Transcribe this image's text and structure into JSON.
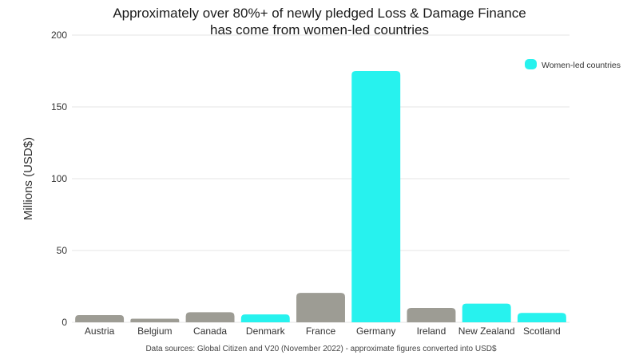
{
  "chart_data": {
    "type": "bar",
    "title_line1": "Approximately over 80%+ of newly pledged Loss & Damage Finance",
    "title_line2": "has come from women-led countries",
    "ylabel": "Millions (USD$)",
    "xlabel": "",
    "ylim": [
      0,
      200
    ],
    "yticks": [
      "0",
      "50",
      "100",
      "150",
      "200"
    ],
    "ytick_values": [
      0,
      50,
      100,
      150,
      200
    ],
    "grid": true,
    "legend_position": "top-right",
    "legend_label": "Women-led countries",
    "source": "Data sources: Global Citizen and V20 (November 2022) - approximate figures converted into USD$",
    "categories": [
      "Austria",
      "Belgium",
      "Canada",
      "Denmark",
      "France",
      "Germany",
      "Ireland",
      "New Zealand",
      "Scotland"
    ],
    "values": [
      5,
      2.5,
      7,
      5.5,
      20.5,
      175,
      10,
      13,
      6.5
    ],
    "women_led": [
      false,
      false,
      false,
      true,
      false,
      true,
      false,
      true,
      true
    ],
    "colors": {
      "women_led": "#27f2ee",
      "other": "#9d9c94",
      "grid": "#e5e5e5"
    }
  }
}
